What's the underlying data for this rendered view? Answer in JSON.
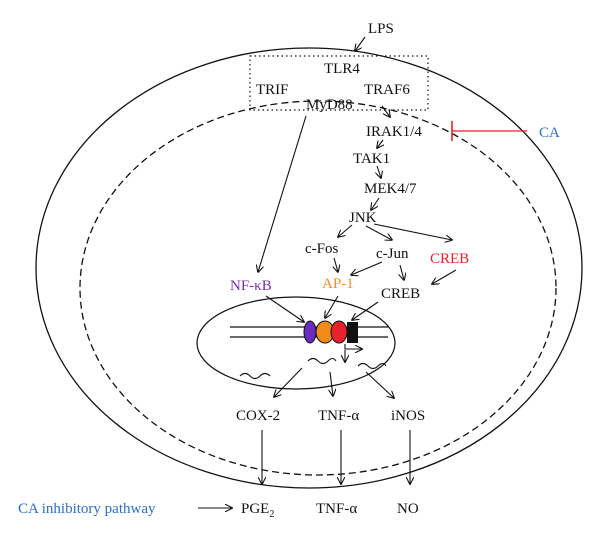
{
  "nodes": {
    "lps": "LPS",
    "tlr4": "TLR4",
    "trif": "TRIF",
    "traf6": "TRAF6",
    "myd88": "MyD88",
    "irak": "IRAK1/4",
    "ca": "CA",
    "tak1": "TAK1",
    "mek": "MEK4/7",
    "jnk": "JNK",
    "cfos": "c-Fos",
    "cjun": "c-Jun",
    "creb_red": "CREB",
    "nfkb": "NF-κB",
    "ap1": "AP-1",
    "creb_black": "CREB",
    "cox2": "COX-2",
    "tnfa": "TNF-α",
    "inos": "iNOS",
    "inhibitory": "CA inhibitory pathway",
    "pge2": "PGE",
    "pge2_sub": "2",
    "tnfa_out": "TNF-α",
    "no": "NO"
  },
  "colors": {
    "ca_blue": "#2e6fc0",
    "inhibit_red": "#e8222a",
    "ap1_orange": "#f0902a",
    "nfkb_purple": "#7a2fa8",
    "dna_purple_oval": "#6a2cc0",
    "dna_orange_oval": "#f08a1a",
    "dna_red_oval": "#e8222a",
    "dna_black_box": "#111111"
  }
}
